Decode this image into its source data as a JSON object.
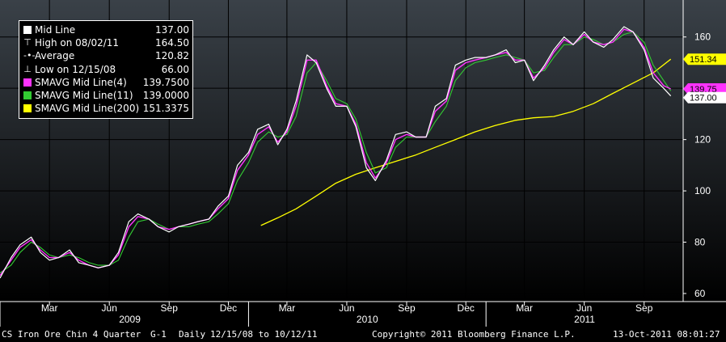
{
  "legend": {
    "items": [
      {
        "name": "Mid Line",
        "value": "137.00",
        "swatch": "#ffffff",
        "symbol": ""
      },
      {
        "name": "High on 08/02/11",
        "value": "164.50",
        "swatch": "",
        "symbol": "high-marker"
      },
      {
        "name": "Average",
        "value": "120.82",
        "swatch": "",
        "symbol": "average-marker"
      },
      {
        "name": "Low on 12/15/08",
        "value": "66.00",
        "swatch": "",
        "symbol": "low-marker"
      },
      {
        "name": "SMAVG Mid Line(4)",
        "value": "139.7500",
        "swatch": "#ff33ff",
        "symbol": ""
      },
      {
        "name": "SMAVG Mid Line(11)",
        "value": "139.0000",
        "swatch": "#33cc33",
        "symbol": ""
      },
      {
        "name": "SMAVG Mid Line(200)",
        "value": "151.3375",
        "swatch": "#ffff00",
        "symbol": ""
      }
    ]
  },
  "price_tags": [
    {
      "text": "151.34",
      "value": 151.34,
      "background": "#ffff00",
      "color": "#000000"
    },
    {
      "text": "139.75",
      "value": 139.75,
      "background": "#ff33ff",
      "color": "#000000"
    },
    {
      "text": "137.00",
      "value": 137.0,
      "background": "#ffffff",
      "color": "#000000"
    }
  ],
  "footer": {
    "security": "CS Iron Ore Chin 4 Quarter",
    "page": "G-1",
    "period": "Daily",
    "range": "12/15/08 to 10/12/11",
    "copyright": "Copyright© 2011 Bloomberg Finance L.P.",
    "timestamp": "13-Oct-2011 08:01:27"
  },
  "colors": {
    "background_top": "#3a4148",
    "background_bottom": "#000000",
    "grid": "#000000",
    "mid_line": "#ffffff",
    "sma4": "#ff33ff",
    "sma11": "#33cc33",
    "sma200": "#ffff00"
  },
  "chart_data": {
    "type": "line",
    "title": "",
    "xlabel": "",
    "ylabel": "",
    "ylim": [
      60,
      170
    ],
    "y_ticks": [
      60,
      80,
      100,
      120,
      140,
      160
    ],
    "y_tick_labels": [
      "60",
      "80",
      "100",
      "120",
      "140",
      "160"
    ],
    "xlim": [
      "2008-12-15",
      "2011-10-31"
    ],
    "x_ticks": [
      {
        "date": "2009-03-01",
        "label": "Mar"
      },
      {
        "date": "2009-06-01",
        "label": "Jun"
      },
      {
        "date": "2009-09-01",
        "label": "Sep"
      },
      {
        "date": "2009-12-01",
        "label": "Dec"
      },
      {
        "date": "2010-03-01",
        "label": "Mar"
      },
      {
        "date": "2010-06-01",
        "label": "Jun"
      },
      {
        "date": "2010-09-01",
        "label": "Sep"
      },
      {
        "date": "2010-12-01",
        "label": "Dec"
      },
      {
        "date": "2011-03-01",
        "label": "Mar"
      },
      {
        "date": "2011-06-01",
        "label": "Jun"
      },
      {
        "date": "2011-09-01",
        "label": "Sep"
      }
    ],
    "year_labels": [
      {
        "label": "2009",
        "start": "2009-01-01",
        "end": "2010-01-01"
      },
      {
        "label": "2010",
        "start": "2010-01-01",
        "end": "2011-01-01"
      },
      {
        "label": "2011",
        "start": "2011-01-01",
        "end": "2011-10-31"
      }
    ],
    "grid": true,
    "legend_position": "top-left",
    "series": [
      {
        "name": "Mid Line",
        "color": "#ffffff",
        "x": [
          "2008-12-15",
          "2009-01-01",
          "2009-01-15",
          "2009-02-01",
          "2009-02-15",
          "2009-03-01",
          "2009-03-15",
          "2009-04-01",
          "2009-04-15",
          "2009-05-01",
          "2009-05-15",
          "2009-06-01",
          "2009-06-15",
          "2009-07-01",
          "2009-07-15",
          "2009-08-01",
          "2009-08-15",
          "2009-09-01",
          "2009-09-15",
          "2009-10-01",
          "2009-10-15",
          "2009-11-01",
          "2009-11-15",
          "2009-12-01",
          "2009-12-15",
          "2010-01-01",
          "2010-01-15",
          "2010-02-01",
          "2010-02-15",
          "2010-03-01",
          "2010-03-15",
          "2010-04-01",
          "2010-04-15",
          "2010-05-01",
          "2010-05-15",
          "2010-06-01",
          "2010-06-15",
          "2010-07-01",
          "2010-07-15",
          "2010-08-01",
          "2010-08-15",
          "2010-09-01",
          "2010-09-15",
          "2010-10-01",
          "2010-10-15",
          "2010-11-01",
          "2010-11-15",
          "2010-12-01",
          "2010-12-15",
          "2011-01-01",
          "2011-01-15",
          "2011-02-01",
          "2011-02-15",
          "2011-03-01",
          "2011-03-15",
          "2011-04-01",
          "2011-04-15",
          "2011-05-01",
          "2011-05-15",
          "2011-06-01",
          "2011-06-15",
          "2011-07-01",
          "2011-07-15",
          "2011-08-01",
          "2011-08-15",
          "2011-09-01",
          "2011-09-15",
          "2011-10-01",
          "2011-10-12"
        ],
        "values": [
          66,
          74,
          79,
          82,
          76,
          73,
          74,
          77,
          72,
          71,
          70,
          71,
          76,
          88,
          91,
          89,
          86,
          84,
          86,
          87,
          88,
          89,
          94,
          98,
          110,
          115,
          124,
          126,
          118,
          124,
          135,
          153,
          150,
          140,
          133,
          133,
          125,
          109,
          104,
          112,
          122,
          123,
          121,
          121,
          133,
          136,
          149,
          151,
          152,
          152,
          153,
          155,
          150,
          151,
          143,
          149,
          155,
          160,
          157,
          162,
          158,
          156,
          159,
          164,
          162,
          155,
          144,
          140,
          137
        ]
      },
      {
        "name": "SMAVG Mid Line(4)",
        "color": "#ff33ff",
        "x": [
          "2008-12-15",
          "2009-01-01",
          "2009-01-15",
          "2009-02-01",
          "2009-02-15",
          "2009-03-01",
          "2009-03-15",
          "2009-04-01",
          "2009-04-15",
          "2009-05-01",
          "2009-05-15",
          "2009-06-01",
          "2009-06-15",
          "2009-07-01",
          "2009-07-15",
          "2009-08-01",
          "2009-08-15",
          "2009-09-01",
          "2009-09-15",
          "2009-10-01",
          "2009-10-15",
          "2009-11-01",
          "2009-11-15",
          "2009-12-01",
          "2009-12-15",
          "2010-01-01",
          "2010-01-15",
          "2010-02-01",
          "2010-02-15",
          "2010-03-01",
          "2010-03-15",
          "2010-04-01",
          "2010-04-15",
          "2010-05-01",
          "2010-05-15",
          "2010-06-01",
          "2010-06-15",
          "2010-07-01",
          "2010-07-15",
          "2010-08-01",
          "2010-08-15",
          "2010-09-01",
          "2010-09-15",
          "2010-10-01",
          "2010-10-15",
          "2010-11-01",
          "2010-11-15",
          "2010-12-01",
          "2010-12-15",
          "2011-01-01",
          "2011-01-15",
          "2011-02-01",
          "2011-02-15",
          "2011-03-01",
          "2011-03-15",
          "2011-04-01",
          "2011-04-15",
          "2011-05-01",
          "2011-05-15",
          "2011-06-01",
          "2011-06-15",
          "2011-07-01",
          "2011-07-15",
          "2011-08-01",
          "2011-08-15",
          "2011-09-01",
          "2011-09-15",
          "2011-10-01",
          "2011-10-12"
        ],
        "values": [
          67,
          73,
          78,
          81,
          77,
          74,
          74,
          76,
          73,
          71,
          70,
          71,
          75,
          86,
          90,
          89,
          86,
          85,
          86,
          87,
          88,
          89,
          93,
          97,
          108,
          114,
          122,
          125,
          119,
          123,
          133,
          151,
          151,
          141,
          134,
          133,
          126,
          111,
          105,
          111,
          120,
          122,
          121,
          121,
          131,
          135,
          147,
          150,
          151,
          152,
          153,
          154,
          151,
          151,
          144,
          148,
          154,
          159,
          157,
          161,
          158,
          157,
          158,
          163,
          162,
          156,
          146,
          141,
          139.75
        ]
      },
      {
        "name": "SMAVG Mid Line(11)",
        "color": "#33cc33",
        "x": [
          "2008-12-15",
          "2009-01-01",
          "2009-01-15",
          "2009-02-01",
          "2009-02-15",
          "2009-03-01",
          "2009-03-15",
          "2009-04-01",
          "2009-04-15",
          "2009-05-01",
          "2009-05-15",
          "2009-06-01",
          "2009-06-15",
          "2009-07-01",
          "2009-07-15",
          "2009-08-01",
          "2009-08-15",
          "2009-09-01",
          "2009-09-15",
          "2009-10-01",
          "2009-10-15",
          "2009-11-01",
          "2009-11-15",
          "2009-12-01",
          "2009-12-15",
          "2010-01-01",
          "2010-01-15",
          "2010-02-01",
          "2010-02-15",
          "2010-03-01",
          "2010-03-15",
          "2010-04-01",
          "2010-04-15",
          "2010-05-01",
          "2010-05-15",
          "2010-06-01",
          "2010-06-15",
          "2010-07-01",
          "2010-07-15",
          "2010-08-01",
          "2010-08-15",
          "2010-09-01",
          "2010-09-15",
          "2010-10-01",
          "2010-10-15",
          "2010-11-01",
          "2010-11-15",
          "2010-12-01",
          "2010-12-15",
          "2011-01-01",
          "2011-01-15",
          "2011-02-01",
          "2011-02-15",
          "2011-03-01",
          "2011-03-15",
          "2011-04-01",
          "2011-04-15",
          "2011-05-01",
          "2011-05-15",
          "2011-06-01",
          "2011-06-15",
          "2011-07-01",
          "2011-07-15",
          "2011-08-01",
          "2011-08-15",
          "2011-09-01",
          "2011-09-15",
          "2011-10-01",
          "2011-10-12"
        ],
        "values": [
          68,
          71,
          76,
          80,
          78,
          75,
          74,
          75,
          74,
          72,
          71,
          71,
          73,
          82,
          88,
          89,
          87,
          85,
          86,
          86,
          87,
          88,
          91,
          95,
          104,
          111,
          119,
          123,
          121,
          122,
          129,
          146,
          150,
          143,
          136,
          134,
          128,
          115,
          107,
          109,
          117,
          121,
          121,
          121,
          127,
          133,
          143,
          148,
          150,
          151,
          152,
          153,
          152,
          151,
          146,
          147,
          152,
          157,
          157,
          160,
          159,
          157,
          158,
          161,
          162,
          158,
          149,
          143,
          139
        ]
      },
      {
        "name": "SMAVG Mid Line(200)",
        "color": "#ffff00",
        "x": [
          "2010-01-20",
          "2010-02-15",
          "2010-03-15",
          "2010-04-15",
          "2010-05-15",
          "2010-06-15",
          "2010-07-15",
          "2010-08-15",
          "2010-09-15",
          "2010-10-15",
          "2010-11-15",
          "2010-12-15",
          "2011-01-15",
          "2011-02-15",
          "2011-03-15",
          "2011-04-15",
          "2011-05-15",
          "2011-06-15",
          "2011-07-15",
          "2011-08-15",
          "2011-09-15",
          "2011-10-12"
        ],
        "values": [
          86.5,
          89.5,
          93,
          98,
          103,
          106.5,
          109,
          111.5,
          114,
          117,
          120,
          123,
          125.5,
          127.5,
          128.5,
          129,
          131,
          134,
          138,
          142,
          146,
          151.34
        ]
      }
    ]
  }
}
